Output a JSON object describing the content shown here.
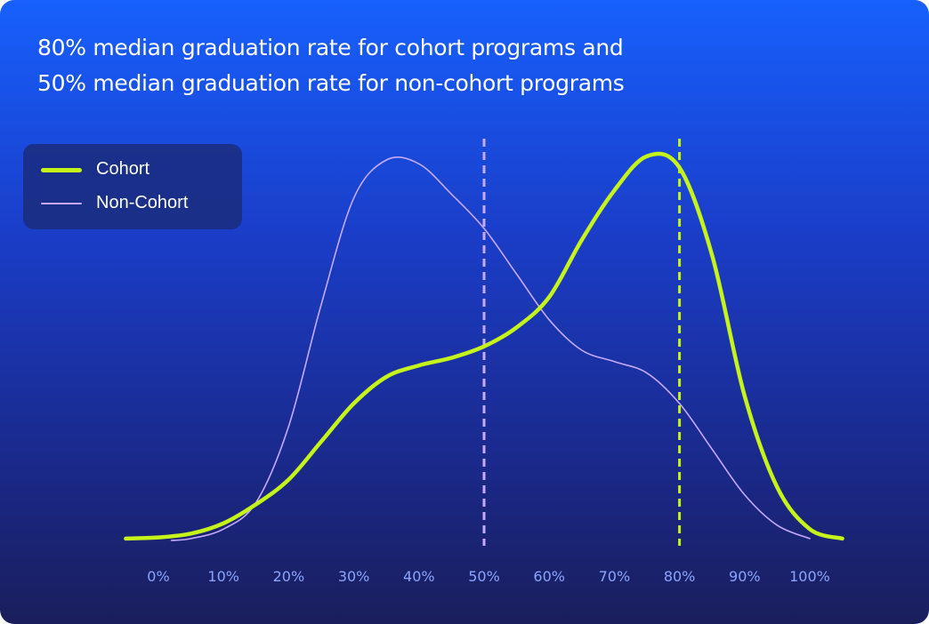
{
  "chart_data": {
    "type": "line",
    "title": "80% median graduation rate for cohort programs and 50% median graduation rate for non-cohort programs",
    "title_lines": [
      "80% median graduation rate for cohort programs and",
      "50% median graduation rate for non-cohort programs"
    ],
    "xlabel": "",
    "ylabel": "",
    "xlim": [
      -5,
      105
    ],
    "ylim": [
      0,
      1.05
    ],
    "x_ticks": [
      0,
      10,
      20,
      30,
      40,
      50,
      60,
      70,
      80,
      90,
      100
    ],
    "x_tick_labels": [
      "0%",
      "10%",
      "20%",
      "30%",
      "40%",
      "50%",
      "60%",
      "70%",
      "80%",
      "90%",
      "100%"
    ],
    "grid": false,
    "legend": "top-left",
    "series": [
      {
        "name": "Cohort",
        "color": "#c6f31a",
        "x": [
          -5,
          0,
          5,
          10,
          15,
          20,
          25,
          30,
          35,
          40,
          45,
          50,
          55,
          60,
          65,
          70,
          75,
          80,
          85,
          90,
          95,
          100,
          105
        ],
        "y": [
          0.005,
          0.008,
          0.018,
          0.045,
          0.095,
          0.16,
          0.26,
          0.36,
          0.43,
          0.46,
          0.48,
          0.51,
          0.56,
          0.64,
          0.79,
          0.92,
          1.01,
          0.98,
          0.75,
          0.38,
          0.14,
          0.03,
          0.005
        ]
      },
      {
        "name": "Non-Cohort",
        "color": "#c7a9ff",
        "x": [
          2,
          5,
          10,
          15,
          20,
          25,
          30,
          35,
          40,
          45,
          50,
          55,
          60,
          65,
          70,
          75,
          80,
          85,
          90,
          95,
          100
        ],
        "y": [
          0.0,
          0.005,
          0.03,
          0.1,
          0.3,
          0.62,
          0.9,
          1.0,
          0.99,
          0.91,
          0.82,
          0.7,
          0.58,
          0.5,
          0.47,
          0.44,
          0.36,
          0.24,
          0.12,
          0.04,
          0.005
        ]
      }
    ],
    "median_lines": [
      {
        "series": "Cohort",
        "x": 80,
        "color": "#c6f31a"
      },
      {
        "series": "Non-Cohort",
        "x": 50,
        "color": "#c7a9ff"
      }
    ]
  }
}
